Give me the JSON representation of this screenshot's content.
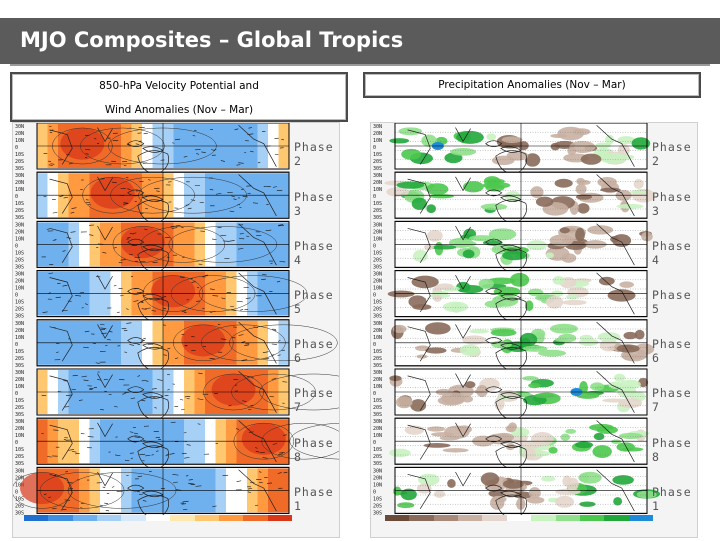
{
  "title": "MJO Composites – Global Tropics",
  "headers": {
    "left_line1": "850-hPa Velocity Potential and",
    "left_line2": "Wind Anomalies (Nov – Mar)",
    "right": "Precipitation Anomalies (Nov – Mar)"
  },
  "panels": [
    {
      "phase": "Phase 2"
    },
    {
      "phase": "Phase 3"
    },
    {
      "phase": "Phase 4"
    },
    {
      "phase": "Phase 5"
    },
    {
      "phase": "Phase 6"
    },
    {
      "phase": "Phase 7"
    },
    {
      "phase": "Phase 8"
    },
    {
      "phase": "Phase 1"
    }
  ],
  "lat_labels": [
    "30N",
    "20N",
    "10N",
    "0",
    "10S",
    "20S",
    "30S"
  ],
  "colors": {
    "title_bar": "#5b5b5b",
    "vp_colorbar": [
      "#1e6fd0",
      "#3f8fe0",
      "#6fb0ee",
      "#a7d0f6",
      "#d6e8fb",
      "#ffffff",
      "#ffe8b0",
      "#ffc870",
      "#ff9a40",
      "#f06a28",
      "#d83818"
    ],
    "precip_colorbar": [
      "#6b4a3a",
      "#8a6a5a",
      "#a98a7a",
      "#c8b0a2",
      "#e4d6cc",
      "#ffffff",
      "#c8f2c0",
      "#8ee08a",
      "#4cc84e",
      "#20a83a",
      "#1f8ad8"
    ]
  }
}
